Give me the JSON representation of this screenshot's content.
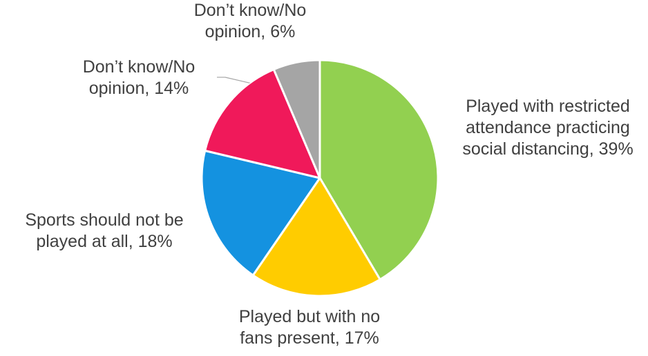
{
  "chart_data": {
    "type": "pie",
    "title": "",
    "slices": [
      {
        "label_lines": [
          "Played with restricted",
          "attendance practicing",
          "social distancing, 39%"
        ],
        "value": 39,
        "color": "#92d050"
      },
      {
        "label_lines": [
          "Played but with no",
          "fans present, 17%"
        ],
        "value": 17,
        "color": "#ffcc00"
      },
      {
        "label_lines": [
          "Sports should not be",
          "played at all, 18%"
        ],
        "value": 18,
        "color": "#1492e0"
      },
      {
        "label_lines": [
          "Don’t know/No",
          "opinion, 14%"
        ],
        "value": 14,
        "color": "#f0195a"
      },
      {
        "label_lines": [
          "Don’t know/No",
          "opinion, 6%"
        ],
        "value": 6,
        "color": "#a5a5a5"
      }
    ],
    "legend": "none",
    "label_color": "#404040",
    "border_color": "#ffffff"
  }
}
